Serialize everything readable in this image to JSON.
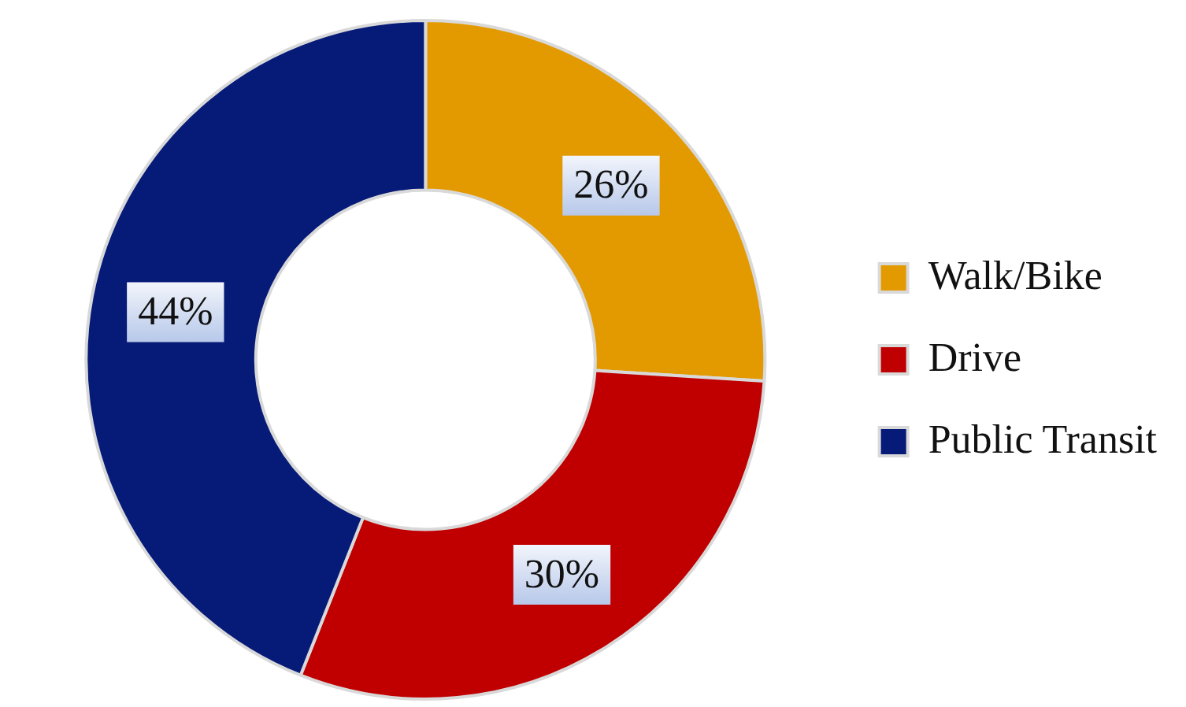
{
  "chart_data": {
    "type": "donut",
    "categories": [
      "Walk/Bike",
      "Drive",
      "Public Transit"
    ],
    "values": [
      26,
      30,
      44
    ],
    "colors": [
      "#e39a00",
      "#c00000",
      "#061a78"
    ],
    "value_labels": [
      "26%",
      "30%",
      "44%"
    ],
    "legend": "right"
  }
}
